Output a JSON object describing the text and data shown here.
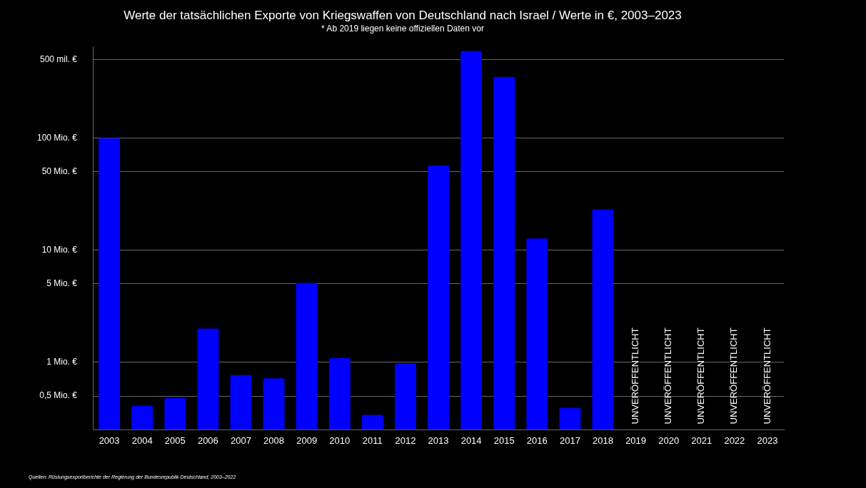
{
  "chart_data": {
    "type": "bar",
    "title": "Werte der tatsächlichen Exporte von Kriegswaffen von Deutschland nach Israel / Werte in €, 2003–2023",
    "subtitle": "* Ab 2019 liegen keine offiziellen Daten vor",
    "categories": [
      "2003",
      "2004",
      "2005",
      "2006",
      "2007",
      "2008",
      "2009",
      "2010",
      "2011",
      "2012",
      "2013",
      "2014",
      "2015",
      "2016",
      "2017",
      "2018",
      "2019",
      "2020",
      "2021",
      "2022",
      "2023"
    ],
    "values": [
      100,
      0.41,
      0.48,
      2.0,
      0.77,
      0.72,
      5.1,
      1.09,
      0.34,
      0.98,
      57,
      597,
      351,
      12.7,
      0.39,
      23,
      null,
      null,
      null,
      null,
      null
    ],
    "color": "#0000ff",
    "log": true,
    "ylim": [
      0.25,
      650
    ],
    "yticks": [
      {
        "value": 0.5,
        "label": "0,5 Mio. €"
      },
      {
        "value": 1,
        "label": "1 Mio. €"
      },
      {
        "value": 5,
        "label": "5 Mio. €"
      },
      {
        "value": 10,
        "label": "10 Mio. €"
      },
      {
        "value": 50,
        "label": "50 Mio. €"
      },
      {
        "value": 100,
        "label": "100 Mio. €"
      },
      {
        "value": 500,
        "label": "500 mil. €"
      }
    ],
    "grid": "y",
    "legend": false,
    "annotations": [
      "UNVERÖFFENTLICHT",
      "UNVERÖFFENTLICHT",
      "UNVERÖFFENTLICHT",
      "UNVERÖFFENTLICHT",
      "UNVERÖFFENTLICHT",
      "Quellen: Rüstungsexportberichte der Regierung der Bundesrepublik Deutschland, 2003–2022"
    ]
  }
}
